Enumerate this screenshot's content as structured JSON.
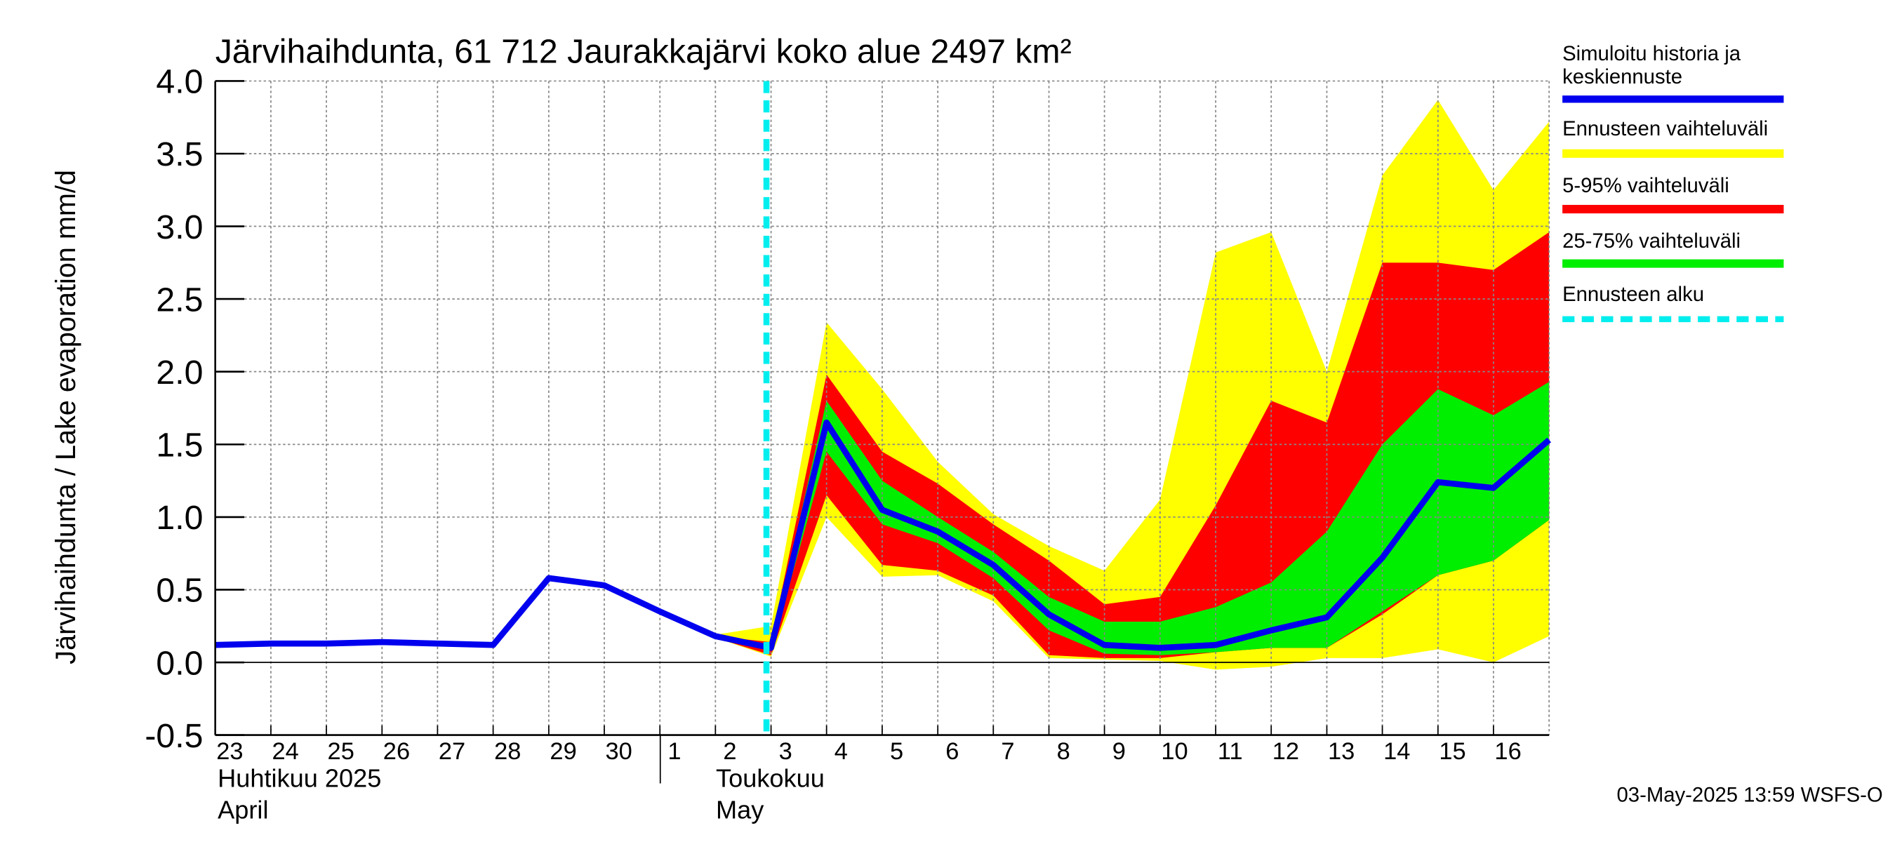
{
  "chart_data": {
    "type": "area",
    "title": "Järvihaihdunta, 61 712 Jaurakkajärvi koko alue 2497 km²",
    "ylabel": "Järvihaihdunta / Lake evaporation   mm/d",
    "ylim": [
      -0.5,
      4.0
    ],
    "yticks": [
      "-0.5",
      "0.0",
      "0.5",
      "1.0",
      "1.5",
      "2.0",
      "2.5",
      "3.0",
      "3.5",
      "4.0"
    ],
    "ytick_values": [
      -0.5,
      0.0,
      0.5,
      1.0,
      1.5,
      2.0,
      2.5,
      3.0,
      3.5,
      4.0
    ],
    "x_day_labels": [
      "23",
      "24",
      "25",
      "26",
      "27",
      "28",
      "29",
      "30",
      "1",
      "2",
      "3",
      "4",
      "5",
      "6",
      "7",
      "8",
      "9",
      "10",
      "11",
      "12",
      "13",
      "14",
      "15",
      "16"
    ],
    "month_labels": [
      {
        "fi": "Huhtikuu  2025",
        "en": "April"
      },
      {
        "fi": "Toukokuu",
        "en": "May"
      }
    ],
    "grid": true,
    "legend_position": "right",
    "forecast_start": "2025-05-02 22:00",
    "footer": "03-May-2025 13:59 WSFS-O",
    "colors": {
      "history": "#0000ee",
      "range_full": "#ffff00",
      "range_5_95": "#ff0000",
      "range_25_75": "#00ee00",
      "forecast_start": "#00eeee",
      "grid": "#888888"
    },
    "legend": [
      {
        "label": "Simuloitu historia ja keskiennuste",
        "lines": [
          "Simuloitu historia ja",
          "keskiennuste"
        ],
        "color": "#0000ee",
        "style": "solid"
      },
      {
        "label": "Ennusteen vaihteluväli",
        "lines": [
          "Ennusteen vaihteluväli"
        ],
        "color": "#ffff00",
        "style": "solid"
      },
      {
        "label": "5-95% vaihteluväli",
        "lines": [
          "5-95% vaihteluväli"
        ],
        "color": "#ff0000",
        "style": "solid"
      },
      {
        "label": "25-75% vaihteluväli",
        "lines": [
          "25-75% vaihteluväli"
        ],
        "color": "#00ee00",
        "style": "solid"
      },
      {
        "label": "Ennusteen alku",
        "lines": [
          "Ennusteen alku"
        ],
        "color": "#00eeee",
        "style": "dashed"
      }
    ],
    "series": [
      {
        "name": "Simuloitu historia ja keskiennuste",
        "x": [
          "2025-04-23",
          "2025-04-24",
          "2025-04-25",
          "2025-04-26",
          "2025-04-27",
          "2025-04-28",
          "2025-04-29",
          "2025-04-30",
          "2025-05-01",
          "2025-05-02",
          "2025-05-03",
          "2025-05-04",
          "2025-05-05",
          "2025-05-06",
          "2025-05-07",
          "2025-05-08",
          "2025-05-09",
          "2025-05-10",
          "2025-05-11",
          "2025-05-12",
          "2025-05-13",
          "2025-05-14",
          "2025-05-15",
          "2025-05-16",
          "2025-05-17"
        ],
        "y": [
          0.12,
          0.13,
          0.13,
          0.14,
          0.13,
          0.12,
          0.58,
          0.53,
          0.35,
          0.18,
          0.1,
          1.65,
          1.05,
          0.9,
          0.67,
          0.33,
          0.12,
          0.1,
          0.12,
          0.22,
          0.31,
          0.72,
          1.24,
          1.2,
          1.53
        ]
      }
    ],
    "bands": [
      {
        "name": "Ennusteen vaihteluväli",
        "x": [
          "2025-05-02",
          "2025-05-03",
          "2025-05-04",
          "2025-05-05",
          "2025-05-06",
          "2025-05-07",
          "2025-05-08",
          "2025-05-09",
          "2025-05-10",
          "2025-05-11",
          "2025-05-12",
          "2025-05-13",
          "2025-05-14",
          "2025-05-15",
          "2025-05-16",
          "2025-05-17"
        ],
        "low": [
          0.17,
          0.04,
          1.0,
          0.59,
          0.6,
          0.42,
          0.03,
          0.02,
          0.01,
          -0.05,
          -0.03,
          0.03,
          0.03,
          0.09,
          0.0,
          0.18
        ],
        "high": [
          0.19,
          0.25,
          2.34,
          1.88,
          1.38,
          1.02,
          0.8,
          0.63,
          1.12,
          2.82,
          2.96,
          2.0,
          3.35,
          3.87,
          3.25,
          3.72
        ]
      },
      {
        "name": "5-95% vaihteluväli",
        "x": [
          "2025-05-02",
          "2025-05-03",
          "2025-05-04",
          "2025-05-05",
          "2025-05-06",
          "2025-05-07",
          "2025-05-08",
          "2025-05-09",
          "2025-05-10",
          "2025-05-11",
          "2025-05-12",
          "2025-05-13",
          "2025-05-14",
          "2025-05-15",
          "2025-05-16",
          "2025-05-17"
        ],
        "low": [
          0.17,
          0.05,
          1.15,
          0.67,
          0.63,
          0.46,
          0.05,
          0.03,
          0.03,
          0.07,
          0.1,
          0.1,
          0.33,
          0.6,
          0.7,
          0.98
        ],
        "high": [
          0.18,
          0.14,
          1.98,
          1.45,
          1.23,
          0.95,
          0.7,
          0.4,
          0.45,
          1.08,
          1.8,
          1.65,
          2.75,
          2.75,
          2.7,
          2.96
        ]
      },
      {
        "name": "25-75% vaihteluväli",
        "x": [
          "2025-05-03",
          "2025-05-04",
          "2025-05-05",
          "2025-05-06",
          "2025-05-07",
          "2025-05-08",
          "2025-05-09",
          "2025-05-10",
          "2025-05-11",
          "2025-05-12",
          "2025-05-13",
          "2025-05-14",
          "2025-05-15",
          "2025-05-16",
          "2025-05-17"
        ],
        "low": [
          0.08,
          1.45,
          0.95,
          0.82,
          0.58,
          0.22,
          0.06,
          0.05,
          0.07,
          0.1,
          0.1,
          0.35,
          0.6,
          0.7,
          0.98
        ],
        "high": [
          0.12,
          1.8,
          1.25,
          1.0,
          0.76,
          0.45,
          0.28,
          0.28,
          0.38,
          0.55,
          0.9,
          1.5,
          1.88,
          1.7,
          1.93
        ]
      }
    ]
  }
}
